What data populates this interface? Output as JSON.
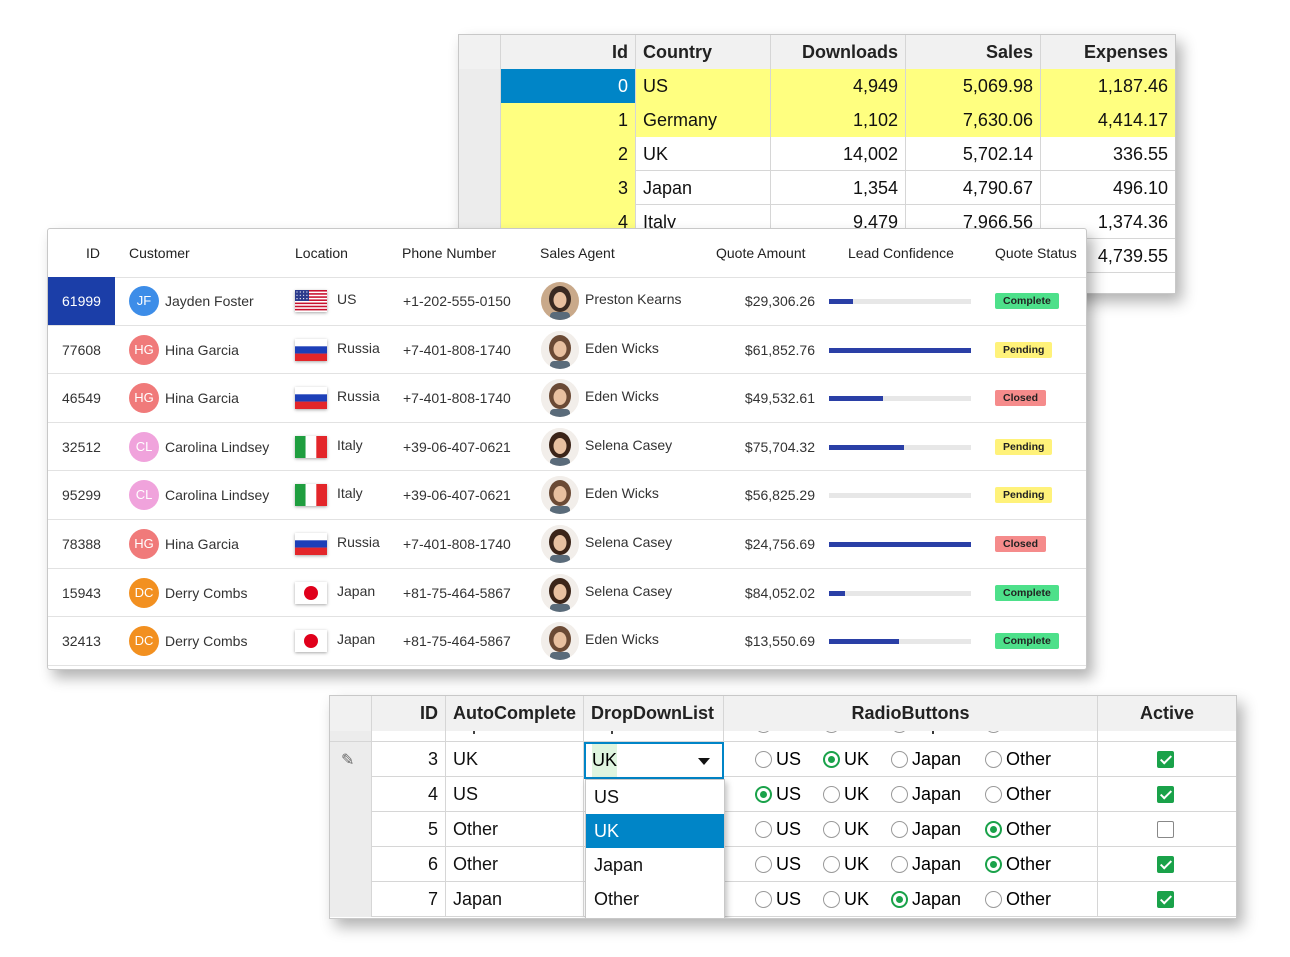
{
  "grid1": {
    "headers": [
      "Id",
      "Country",
      "Downloads",
      "Sales",
      "Expenses"
    ],
    "rows": [
      {
        "id": "0",
        "country": "US",
        "downloads": "4,949",
        "sales": "5,069.98",
        "expenses": "1,187.46"
      },
      {
        "id": "1",
        "country": "Germany",
        "downloads": "1,102",
        "sales": "7,630.06",
        "expenses": "4,414.17"
      },
      {
        "id": "2",
        "country": "UK",
        "downloads": "14,002",
        "sales": "5,702.14",
        "expenses": "336.55"
      },
      {
        "id": "3",
        "country": "Japan",
        "downloads": "1,354",
        "sales": "4,790.67",
        "expenses": "496.10"
      },
      {
        "id": "4",
        "country": "Italy",
        "downloads": "9,479",
        "sales": "7,966.56",
        "expenses": "1,374.36"
      },
      {
        "id": "",
        "country": "",
        "downloads": "",
        "sales": "",
        "expenses": "4,739.55"
      }
    ],
    "highlight_color": "#ffff80",
    "selection_color": "#0085c7"
  },
  "grid2": {
    "headers": [
      "ID",
      "Customer",
      "Location",
      "Phone Number",
      "Sales Agent",
      "Quote Amount",
      "Lead Confidence",
      "Quote Status"
    ],
    "rows": [
      {
        "id": "61999",
        "initials": "JF",
        "customer": "Jayden Foster",
        "avatar_color": "#3d8de8",
        "flag": "us-flag-icon",
        "location": "US",
        "phone": "+1-202-555-0150",
        "agent": "Preston Kearns",
        "amount": "$29,306.26",
        "confidence": 0.17,
        "status": "Complete"
      },
      {
        "id": "77608",
        "initials": "HG",
        "customer": "Hina Garcia",
        "avatar_color": "#f07a7a",
        "flag": "russia-flag-icon",
        "location": "Russia",
        "phone": "+7-401-808-1740",
        "agent": "Eden Wicks",
        "amount": "$61,852.76",
        "confidence": 1.0,
        "status": "Pending"
      },
      {
        "id": "46549",
        "initials": "HG",
        "customer": "Hina Garcia",
        "avatar_color": "#f07a7a",
        "flag": "russia-flag-icon",
        "location": "Russia",
        "phone": "+7-401-808-1740",
        "agent": "Eden Wicks",
        "amount": "$49,532.61",
        "confidence": 0.38,
        "status": "Closed"
      },
      {
        "id": "32512",
        "initials": "CL",
        "customer": "Carolina Lindsey",
        "avatar_color": "#f0a3dc",
        "flag": "italy-flag-icon",
        "location": "Italy",
        "phone": "+39-06-407-0621",
        "agent": "Selena Casey",
        "amount": "$75,704.32",
        "confidence": 0.53,
        "status": "Pending"
      },
      {
        "id": "95299",
        "initials": "CL",
        "customer": "Carolina Lindsey",
        "avatar_color": "#f0a3dc",
        "flag": "italy-flag-icon",
        "location": "Italy",
        "phone": "+39-06-407-0621",
        "agent": "Eden Wicks",
        "amount": "$56,825.29",
        "confidence": 0.0,
        "status": "Pending"
      },
      {
        "id": "78388",
        "initials": "HG",
        "customer": "Hina Garcia",
        "avatar_color": "#f07a7a",
        "flag": "russia-flag-icon",
        "location": "Russia",
        "phone": "+7-401-808-1740",
        "agent": "Selena Casey",
        "amount": "$24,756.69",
        "confidence": 1.0,
        "status": "Closed"
      },
      {
        "id": "15943",
        "initials": "DC",
        "customer": "Derry Combs",
        "avatar_color": "#f29020",
        "flag": "japan-flag-icon",
        "location": "Japan",
        "phone": "+81-75-464-5867",
        "agent": "Selena Casey",
        "amount": "$84,052.02",
        "confidence": 0.11,
        "status": "Complete"
      },
      {
        "id": "32413",
        "initials": "DC",
        "customer": "Derry Combs",
        "avatar_color": "#f29020",
        "flag": "japan-flag-icon",
        "location": "Japan",
        "phone": "+81-75-464-5867",
        "agent": "Eden Wicks",
        "amount": "$13,550.69",
        "confidence": 0.49,
        "status": "Complete"
      }
    ]
  },
  "grid3": {
    "headers": [
      "ID",
      "AutoComplete",
      "DropDownList",
      "RadioButtons",
      "Active"
    ],
    "partial_row": {
      "autocomplete": "Japan",
      "dropdown": "Japan",
      "radios": [
        "US",
        "UK",
        "Japan",
        "Other"
      ]
    },
    "rows": [
      {
        "id": "3",
        "auto": "UK",
        "drop": "UK",
        "radio": "UK",
        "active": true,
        "editing": true
      },
      {
        "id": "4",
        "auto": "US",
        "drop": "",
        "radio": "US",
        "active": true
      },
      {
        "id": "5",
        "auto": "Other",
        "drop": "",
        "radio": "Other",
        "active": false
      },
      {
        "id": "6",
        "auto": "Other",
        "drop": "",
        "radio": "Other",
        "active": true
      },
      {
        "id": "7",
        "auto": "Japan",
        "drop": "",
        "radio": "Japan",
        "active": true
      }
    ],
    "radio_options": [
      "US",
      "UK",
      "Japan",
      "Other"
    ],
    "dropdown": {
      "current": "UK",
      "options": [
        "US",
        "UK",
        "Japan",
        "Other"
      ],
      "highlighted": "UK"
    },
    "edit_icon": "pencil-icon",
    "accent": "#1aa24a"
  }
}
